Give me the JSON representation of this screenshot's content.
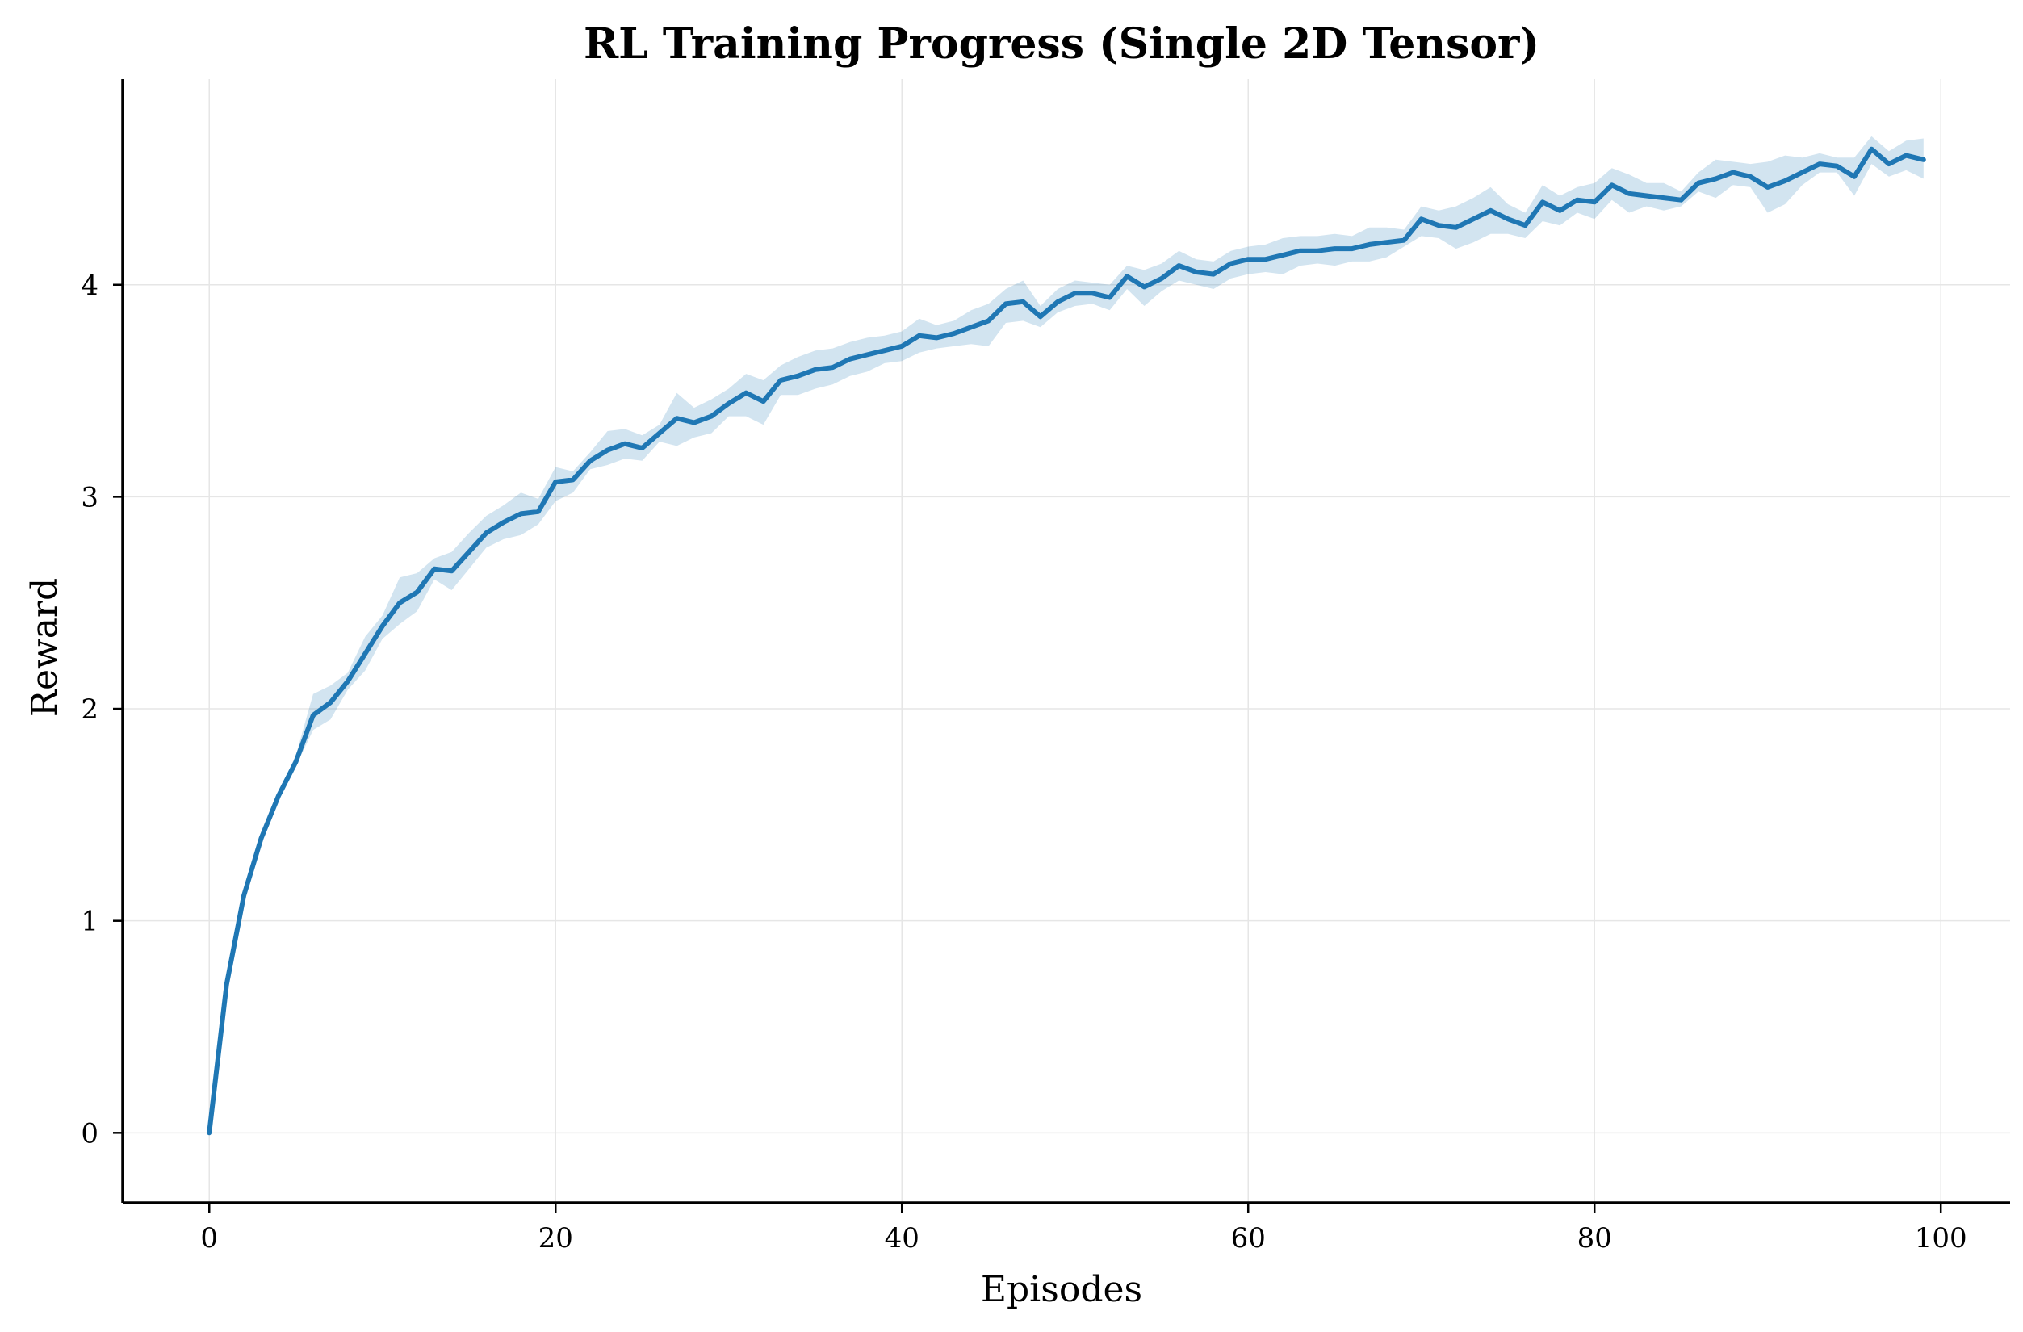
{
  "chart_data": {
    "type": "line",
    "title": "RL Training Progress (Single 2D Tensor)",
    "xlabel": "Episodes",
    "ylabel": "Reward",
    "xlim": [
      -5,
      104
    ],
    "ylim": [
      -0.33,
      4.97
    ],
    "x_ticks": [
      0,
      20,
      40,
      60,
      80,
      100
    ],
    "y_ticks": [
      0,
      1,
      2,
      3,
      4
    ],
    "x_tick_labels": [
      "0",
      "20",
      "40",
      "60",
      "80",
      "100"
    ],
    "y_tick_labels": [
      "0",
      "1",
      "2",
      "3",
      "4"
    ],
    "grid": true,
    "legend": "none",
    "colors": {
      "line": "#1f77b4",
      "band": "#1f77b4",
      "grid": "#e6e6e6",
      "axis": "#000000"
    },
    "series": [
      {
        "x": [
          0,
          1,
          2,
          3,
          4,
          5,
          6,
          7,
          8,
          9,
          10,
          11,
          12,
          13,
          14,
          15,
          16,
          17,
          18,
          19,
          20,
          21,
          22,
          23,
          24,
          25,
          26,
          27,
          28,
          29,
          30,
          31,
          32,
          33,
          34,
          35,
          36,
          37,
          38,
          39,
          40,
          41,
          42,
          43,
          44,
          45,
          46,
          47,
          48,
          49,
          50,
          51,
          52,
          53,
          54,
          55,
          56,
          57,
          58,
          59,
          60,
          61,
          62,
          63,
          64,
          65,
          66,
          67,
          68,
          69,
          70,
          71,
          72,
          73,
          74,
          75,
          76,
          77,
          78,
          79,
          80,
          81,
          82,
          83,
          84,
          85,
          86,
          87,
          88,
          89,
          90,
          91,
          92,
          93,
          94,
          95,
          96,
          97,
          98,
          99
        ],
        "values": [
          0.0,
          0.7,
          1.12,
          1.39,
          1.59,
          1.75,
          1.97,
          2.03,
          2.13,
          2.26,
          2.39,
          2.5,
          2.55,
          2.66,
          2.65,
          2.74,
          2.83,
          2.88,
          2.92,
          2.93,
          3.07,
          3.08,
          3.17,
          3.22,
          3.25,
          3.23,
          3.3,
          3.37,
          3.35,
          3.38,
          3.44,
          3.49,
          3.45,
          3.55,
          3.57,
          3.6,
          3.61,
          3.65,
          3.67,
          3.69,
          3.71,
          3.76,
          3.75,
          3.77,
          3.8,
          3.83,
          3.91,
          3.92,
          3.85,
          3.92,
          3.96,
          3.96,
          3.94,
          4.04,
          3.99,
          4.03,
          4.09,
          4.06,
          4.05,
          4.1,
          4.12,
          4.12,
          4.14,
          4.16,
          4.16,
          4.17,
          4.17,
          4.19,
          4.2,
          4.21,
          4.31,
          4.28,
          4.27,
          4.31,
          4.35,
          4.31,
          4.28,
          4.39,
          4.35,
          4.4,
          4.39,
          4.47,
          4.43,
          4.42,
          4.41,
          4.4,
          4.48,
          4.5,
          4.53,
          4.51,
          4.46,
          4.49,
          4.53,
          4.57,
          4.56,
          4.51,
          4.64,
          4.57,
          4.61,
          4.59
        ],
        "lower": [
          0.0,
          0.69,
          1.1,
          1.37,
          1.57,
          1.73,
          1.9,
          1.95,
          2.09,
          2.18,
          2.33,
          2.4,
          2.46,
          2.61,
          2.56,
          2.66,
          2.76,
          2.8,
          2.82,
          2.87,
          2.98,
          3.02,
          3.13,
          3.15,
          3.18,
          3.17,
          3.26,
          3.24,
          3.28,
          3.3,
          3.38,
          3.38,
          3.34,
          3.48,
          3.48,
          3.51,
          3.53,
          3.57,
          3.59,
          3.63,
          3.64,
          3.68,
          3.7,
          3.71,
          3.72,
          3.71,
          3.82,
          3.83,
          3.8,
          3.87,
          3.9,
          3.91,
          3.88,
          3.98,
          3.9,
          3.97,
          4.02,
          4.0,
          3.98,
          4.03,
          4.05,
          4.06,
          4.05,
          4.09,
          4.1,
          4.09,
          4.11,
          4.11,
          4.13,
          4.18,
          4.23,
          4.22,
          4.17,
          4.2,
          4.24,
          4.24,
          4.22,
          4.3,
          4.28,
          4.34,
          4.31,
          4.4,
          4.34,
          4.37,
          4.35,
          4.37,
          4.44,
          4.41,
          4.47,
          4.46,
          4.34,
          4.38,
          4.47,
          4.53,
          4.53,
          4.42,
          4.57,
          4.51,
          4.54,
          4.5
        ],
        "upper": [
          0.0,
          0.71,
          1.14,
          1.41,
          1.61,
          1.78,
          2.07,
          2.11,
          2.17,
          2.34,
          2.44,
          2.62,
          2.64,
          2.71,
          2.74,
          2.83,
          2.91,
          2.96,
          3.02,
          2.99,
          3.14,
          3.12,
          3.21,
          3.31,
          3.32,
          3.29,
          3.34,
          3.49,
          3.42,
          3.46,
          3.51,
          3.58,
          3.55,
          3.62,
          3.66,
          3.69,
          3.7,
          3.73,
          3.75,
          3.76,
          3.78,
          3.84,
          3.81,
          3.83,
          3.88,
          3.91,
          3.98,
          4.02,
          3.9,
          3.98,
          4.02,
          4.01,
          4.0,
          4.09,
          4.07,
          4.1,
          4.16,
          4.12,
          4.11,
          4.16,
          4.18,
          4.19,
          4.22,
          4.23,
          4.23,
          4.24,
          4.23,
          4.27,
          4.27,
          4.26,
          4.37,
          4.35,
          4.37,
          4.41,
          4.46,
          4.38,
          4.34,
          4.47,
          4.42,
          4.46,
          4.48,
          4.55,
          4.52,
          4.48,
          4.48,
          4.44,
          4.53,
          4.59,
          4.58,
          4.57,
          4.58,
          4.61,
          4.6,
          4.62,
          4.6,
          4.6,
          4.7,
          4.63,
          4.68,
          4.69
        ]
      }
    ]
  }
}
